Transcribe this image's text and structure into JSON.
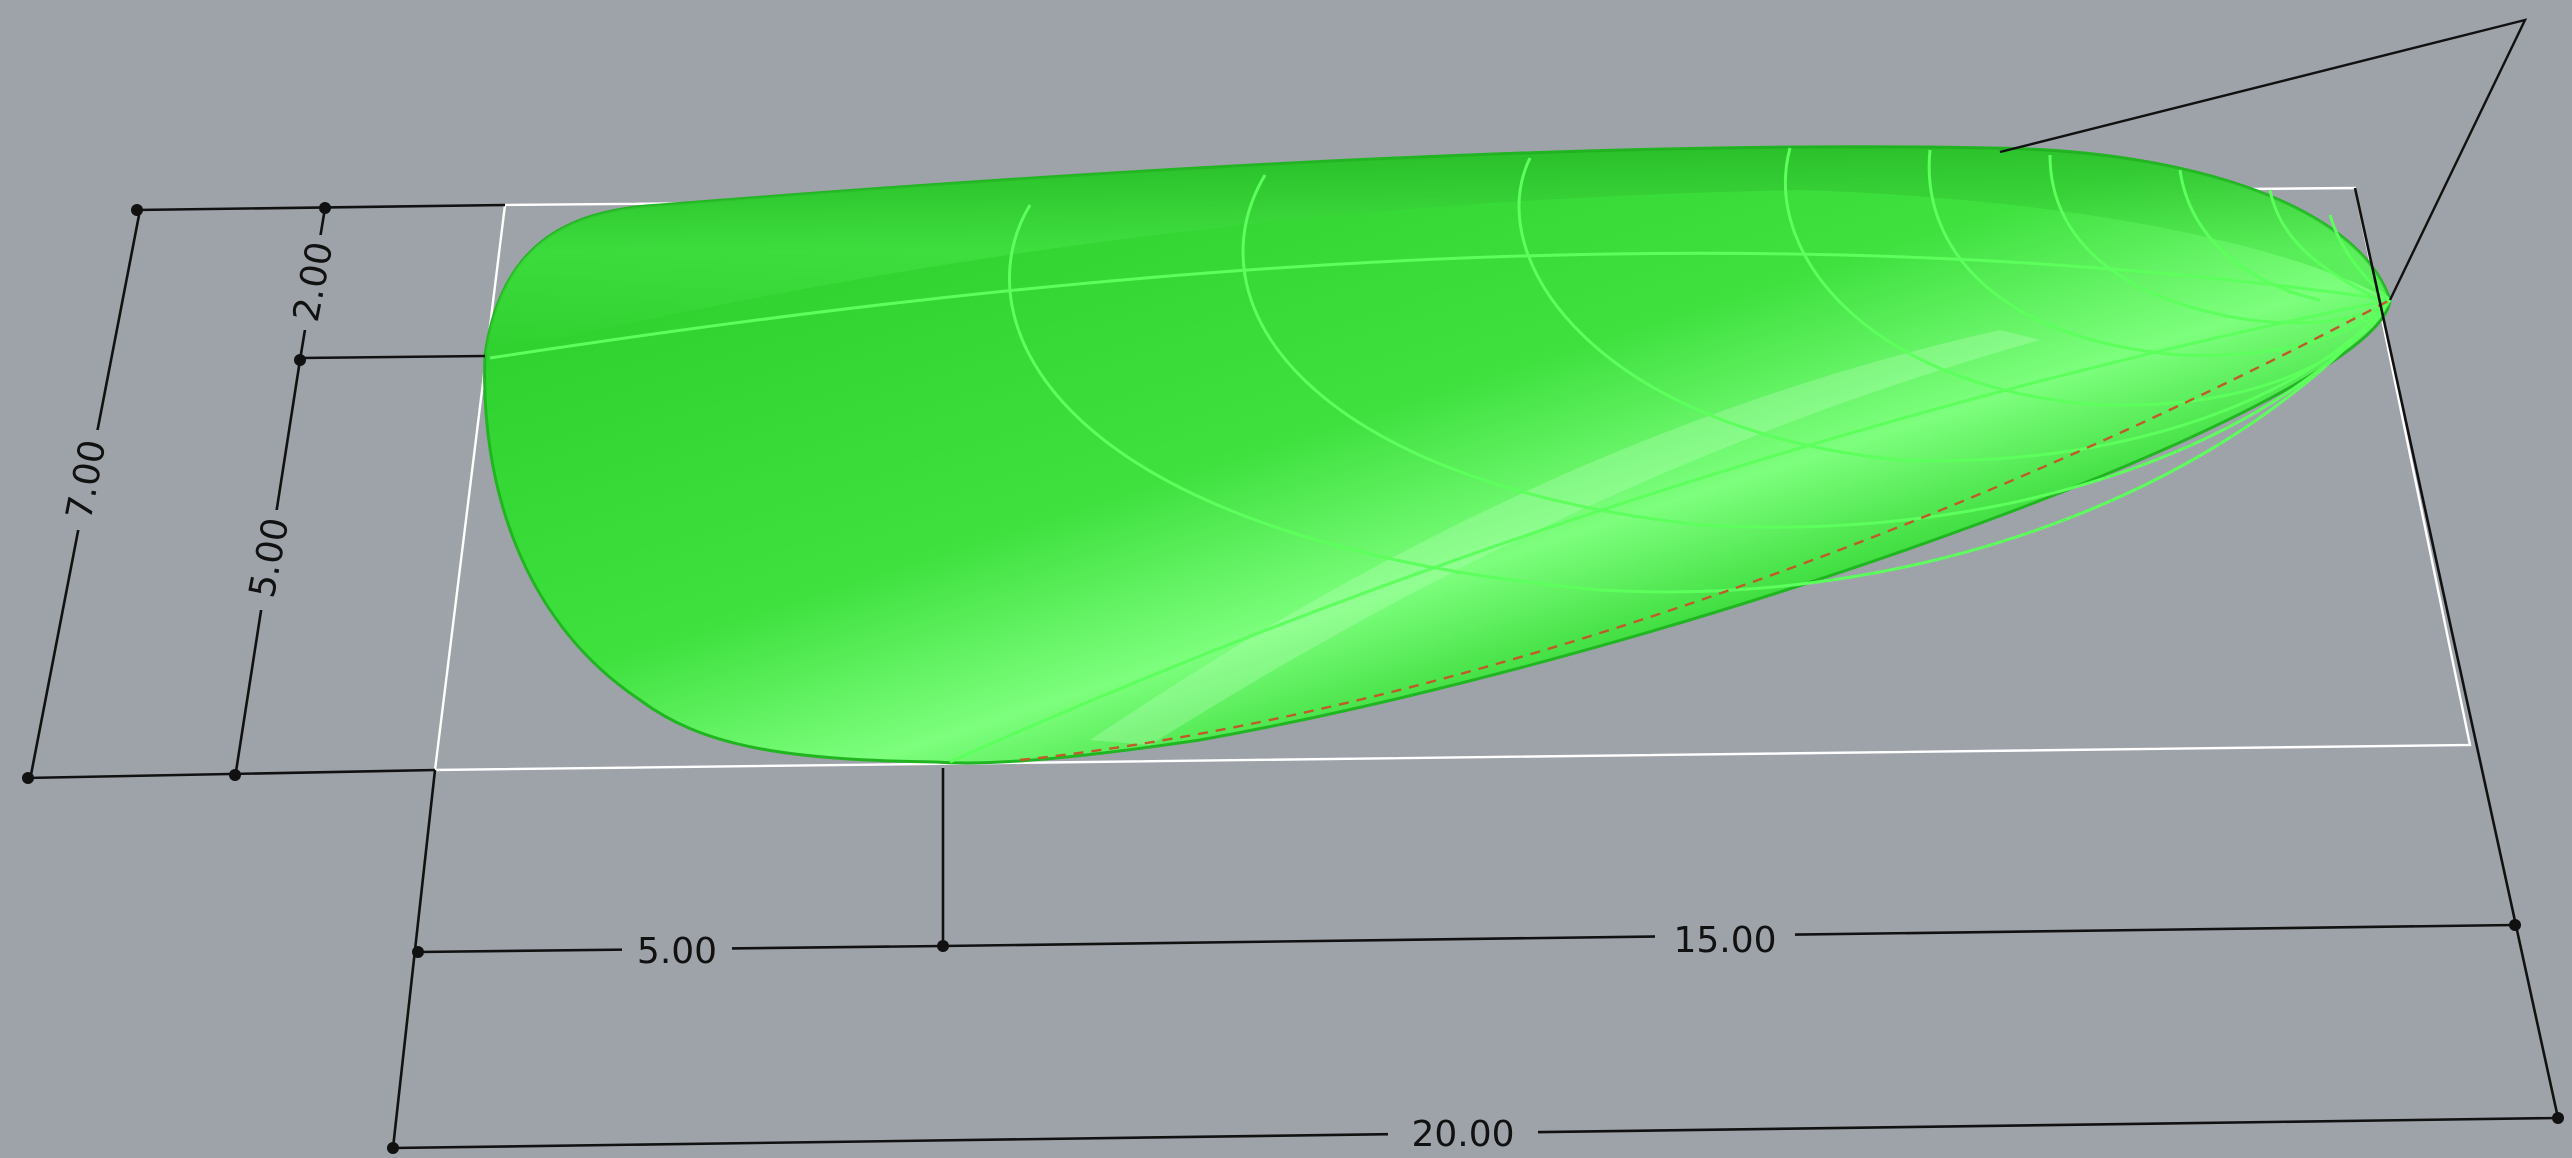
{
  "viewport": {
    "background_color": "#9ea3aa",
    "surface_color": "#2fd22f",
    "isocurve_color": "#5cff5c",
    "frame_color": "#ffffff",
    "dimension_color": "#111111",
    "seam_color": "#c05a2a"
  },
  "dimensions": {
    "total_height": "7.00",
    "top_offset": "2.00",
    "inner_height": "5.00",
    "left_offset": "5.00",
    "right_length": "15.00",
    "total_length": "20.00"
  }
}
